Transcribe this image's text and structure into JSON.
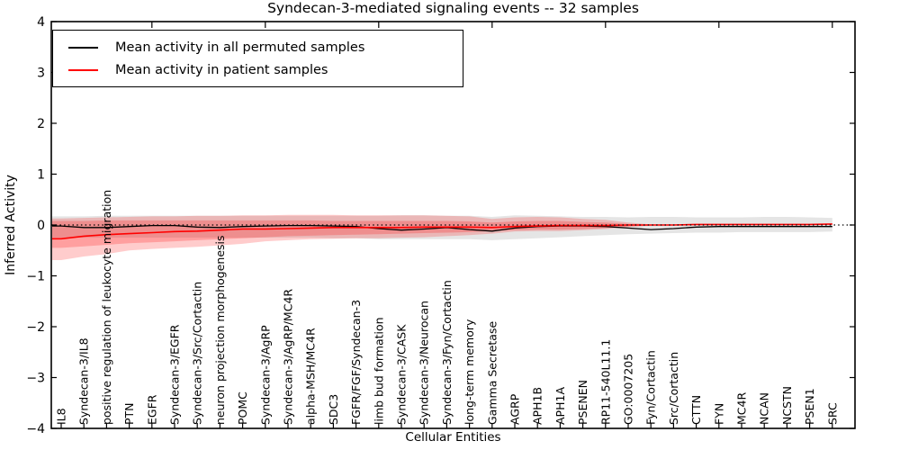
{
  "chart_data": {
    "type": "line",
    "title": "Syndecan-3-mediated signaling events -- 32 samples",
    "xlabel": "Cellular Entities",
    "ylabel": "Inferred Activity",
    "ylim": [
      -4,
      4
    ],
    "ytick_values": [
      4,
      3,
      2,
      1,
      0,
      -1,
      -2,
      -3,
      -4
    ],
    "ytick_labels": [
      "4",
      "3",
      "2",
      "1",
      "0",
      "−1",
      "−2",
      "−3",
      "−4"
    ],
    "grid": false,
    "legend_position": "upper left",
    "zero_reference_line": 0,
    "categories": [
      "IL8",
      "Syndecan-3/IL8",
      "positive regulation of leukocyte migration",
      "PTN",
      "EGFR",
      "Syndecan-3/EGFR",
      "Syndecan-3/Src/Cortactin",
      "neuron projection morphogenesis",
      "POMC",
      "Syndecan-3/AgRP",
      "Syndecan-3/AgRP/MC4R",
      "alpha-MSH/MC4R",
      "SDC3",
      "FGFR/FGF/Syndecan-3",
      "limb bud formation",
      "Syndecan-3/CASK",
      "Syndecan-3/Neurocan",
      "Syndecan-3/Fyn/Cortactin",
      "long-term memory",
      "Gamma Secretase",
      "AGRP",
      "APH1B",
      "APH1A",
      "PSENEN",
      "RP11-540L11.1",
      "GO:0007205",
      "Fyn/Cortactin",
      "Src/Cortactin",
      "CTTN",
      "FYN",
      "MC4R",
      "NCAN",
      "NCSTN",
      "PSEN1",
      "SRC"
    ],
    "series": [
      {
        "name": "Mean activity in all permuted samples",
        "color": "#000000",
        "values": [
          -0.02,
          -0.05,
          -0.05,
          -0.03,
          -0.01,
          -0.01,
          -0.04,
          -0.05,
          -0.03,
          -0.02,
          -0.01,
          -0.01,
          -0.02,
          -0.03,
          -0.07,
          -0.1,
          -0.08,
          -0.05,
          -0.09,
          -0.12,
          -0.06,
          -0.03,
          -0.02,
          -0.02,
          -0.03,
          -0.06,
          -0.09,
          -0.07,
          -0.04,
          -0.03,
          -0.03,
          -0.03,
          -0.03,
          -0.03,
          -0.03
        ]
      },
      {
        "name": "Mean activity in patient samples",
        "color": "#ff0000",
        "values": [
          -0.27,
          -0.22,
          -0.19,
          -0.17,
          -0.15,
          -0.13,
          -0.12,
          -0.1,
          -0.08,
          -0.08,
          -0.07,
          -0.06,
          -0.05,
          -0.05,
          -0.05,
          -0.05,
          -0.04,
          -0.04,
          -0.04,
          -0.05,
          -0.03,
          -0.02,
          -0.01,
          -0.01,
          -0.01,
          0.0,
          0.0,
          0.0,
          0.01,
          0.01,
          0.01,
          0.01,
          0.01,
          0.01,
          0.02
        ]
      }
    ],
    "bands": [
      {
        "name": "permuted-range-band",
        "color": "rgba(0,0,0,0.10)",
        "upper": [
          0.17,
          0.17,
          0.18,
          0.18,
          0.18,
          0.18,
          0.18,
          0.18,
          0.18,
          0.18,
          0.18,
          0.18,
          0.18,
          0.18,
          0.18,
          0.19,
          0.19,
          0.18,
          0.18,
          0.16,
          0.19,
          0.18,
          0.17,
          0.16,
          0.16,
          0.15,
          0.16,
          0.16,
          0.15,
          0.15,
          0.15,
          0.16,
          0.16,
          0.15,
          0.14
        ],
        "lower": [
          -0.25,
          -0.25,
          -0.25,
          -0.25,
          -0.25,
          -0.25,
          -0.25,
          -0.25,
          -0.25,
          -0.25,
          -0.25,
          -0.25,
          -0.26,
          -0.26,
          -0.28,
          -0.28,
          -0.28,
          -0.28,
          -0.28,
          -0.3,
          -0.28,
          -0.26,
          -0.24,
          -0.22,
          -0.2,
          -0.18,
          -0.17,
          -0.16,
          -0.15,
          -0.15,
          -0.14,
          -0.14,
          -0.14,
          -0.14,
          -0.13
        ]
      },
      {
        "name": "patient-range-band-outer",
        "color": "rgba(255,0,0,0.20)",
        "upper": [
          0.13,
          0.14,
          0.15,
          0.16,
          0.17,
          0.17,
          0.18,
          0.18,
          0.19,
          0.19,
          0.2,
          0.2,
          0.2,
          0.19,
          0.19,
          0.19,
          0.19,
          0.18,
          0.17,
          0.12,
          0.15,
          0.16,
          0.15,
          0.12,
          0.1,
          0.05,
          0.01,
          0.0,
          0.01,
          0.01,
          0.01,
          0.01,
          0.01,
          0.01,
          0.02
        ],
        "lower": [
          -0.69,
          -0.62,
          -0.57,
          -0.5,
          -0.47,
          -0.45,
          -0.43,
          -0.4,
          -0.37,
          -0.32,
          -0.3,
          -0.28,
          -0.27,
          -0.26,
          -0.26,
          -0.25,
          -0.24,
          -0.22,
          -0.2,
          -0.17,
          -0.13,
          -0.12,
          -0.12,
          -0.1,
          -0.08,
          -0.04,
          -0.01,
          0.0,
          0.01,
          0.01,
          0.01,
          0.01,
          0.01,
          0.01,
          0.02
        ]
      },
      {
        "name": "patient-range-band-inner",
        "color": "rgba(255,0,0,0.22)",
        "upper": [
          0.08,
          0.08,
          0.09,
          0.09,
          0.09,
          0.09,
          0.09,
          0.09,
          0.09,
          0.09,
          0.09,
          0.09,
          0.08,
          0.08,
          0.08,
          0.08,
          0.08,
          0.08,
          0.07,
          0.05,
          0.07,
          0.08,
          0.08,
          0.06,
          0.05,
          0.02,
          0.0,
          0.0,
          0.01,
          0.01,
          0.01,
          0.01,
          0.01,
          0.01,
          0.02
        ],
        "lower": [
          -0.45,
          -0.42,
          -0.39,
          -0.36,
          -0.34,
          -0.32,
          -0.3,
          -0.28,
          -0.26,
          -0.24,
          -0.22,
          -0.21,
          -0.2,
          -0.19,
          -0.18,
          -0.17,
          -0.16,
          -0.15,
          -0.14,
          -0.12,
          -0.1,
          -0.09,
          -0.09,
          -0.08,
          -0.06,
          -0.03,
          -0.01,
          0.0,
          0.01,
          0.01,
          0.01,
          0.01,
          0.01,
          0.01,
          0.02
        ]
      }
    ],
    "legend": [
      {
        "label": "Mean activity in all permuted samples",
        "swatch": "permuted_line"
      },
      {
        "label": "Mean activity in patient samples",
        "swatch": "patient_line"
      }
    ],
    "colors": {
      "permuted_line": "#000000",
      "patient_line": "#ff0000",
      "axis": "#000000",
      "background": "#ffffff"
    }
  }
}
